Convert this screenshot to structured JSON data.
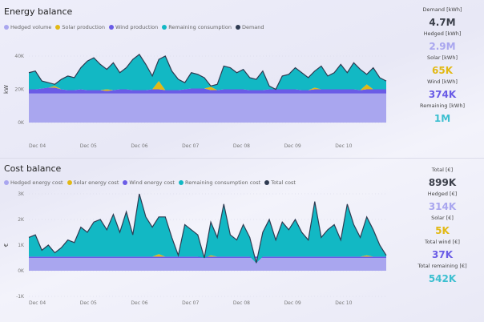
{
  "energy": {
    "title": "Energy balance",
    "legend": [
      "Hedged volume",
      "Solar production",
      "Wind production",
      "Remaining consumption",
      "Demand"
    ]
  },
  "cost": {
    "title": "Cost balance",
    "legend": [
      "Hedged energy cost",
      "Solar energy cost",
      "Wind energy cost",
      "Remaining consumption cost",
      "Total cost"
    ]
  },
  "colors": {
    "hedged": "#a9a6ef",
    "solar": "#e2b916",
    "wind": "#6a5ce6",
    "remaining": "#12b8c4",
    "demand": "#2f3b52"
  },
  "kpi_energy": [
    {
      "label": "Demand [kWh]",
      "value": "4.7M",
      "color": "#3b3f4a"
    },
    {
      "label": "Hedged [kWh]",
      "value": "2.9M",
      "color": "#a9a6ef"
    },
    {
      "label": "Solar [kWh]",
      "value": "65K",
      "color": "#e2b916"
    },
    {
      "label": "Wind [kWh]",
      "value": "374K",
      "color": "#6a5ce6"
    },
    {
      "label": "Remaining [kWh]",
      "value": "1M",
      "color": "#3cbfd0"
    }
  ],
  "kpi_cost": [
    {
      "label": "Total [€]",
      "value": "899K",
      "color": "#3b3f4a"
    },
    {
      "label": "Hedged [€]",
      "value": "314K",
      "color": "#a9a6ef"
    },
    {
      "label": "Solar [€]",
      "value": "5K",
      "color": "#e2b916"
    },
    {
      "label": "Total wind [€]",
      "value": "37K",
      "color": "#6a5ce6"
    },
    {
      "label": "Total remaining [€]",
      "value": "542K",
      "color": "#3cbfd0"
    }
  ],
  "chart_data": [
    {
      "type": "area",
      "title": "Energy balance",
      "ylabel": "kW",
      "ylim": [
        0,
        40
      ],
      "yticks": [
        "0K",
        "20K",
        "40K"
      ],
      "xticks": [
        "Dec 04",
        "Dec 05",
        "Dec 06",
        "Dec 07",
        "Dec 08",
        "Dec 09",
        "Dec 10"
      ],
      "step_hours": 3,
      "series": [
        {
          "name": "Hedged volume",
          "values_constant": 17.5
        },
        {
          "name": "Wind production",
          "values": [
            2.5,
            2.5,
            3,
            3.5,
            3.5,
            2.5,
            2,
            2,
            2.5,
            2,
            2,
            2,
            1.5,
            2,
            2.5,
            2.5,
            2,
            2,
            2,
            2.5,
            2.5,
            2,
            2,
            2,
            2.5,
            3,
            3,
            3,
            2,
            2,
            2.5,
            2.5,
            2.5,
            2.5,
            2,
            2,
            2,
            2.5,
            2.5,
            2.5,
            2.5,
            2.5,
            2,
            2,
            2.5,
            2.5,
            2.5,
            2.5,
            2.5,
            2.5,
            2.5,
            2,
            2.5,
            2.5,
            2.5,
            2.5
          ]
        },
        {
          "name": "Solar production",
          "values": [
            0,
            0,
            0,
            0,
            1,
            0,
            0,
            0,
            0,
            0,
            0,
            0,
            1,
            0,
            0,
            0,
            0,
            0,
            0,
            0,
            5,
            0,
            0,
            0,
            0,
            0,
            0,
            0,
            2,
            0,
            0,
            0,
            0,
            0,
            0,
            0,
            0,
            0,
            0,
            0,
            0,
            0,
            0,
            0,
            1,
            0,
            0,
            0,
            0,
            0,
            0,
            0,
            3,
            0,
            0,
            0
          ]
        },
        {
          "name": "Demand",
          "values": [
            30,
            31,
            25,
            24,
            23,
            26,
            28,
            27,
            33,
            37,
            39,
            35,
            32,
            36,
            30,
            33,
            38,
            41,
            35,
            28,
            38,
            40,
            31,
            26,
            24,
            30,
            29,
            27,
            22,
            23,
            34,
            33,
            30,
            32,
            27,
            26,
            31,
            22,
            20,
            28,
            29,
            33,
            30,
            27,
            31,
            34,
            28,
            30,
            35,
            30,
            36,
            32,
            29,
            33,
            27,
            25
          ]
        }
      ]
    },
    {
      "type": "area",
      "title": "Cost balance",
      "ylabel": "€",
      "ylim": [
        -1,
        3
      ],
      "yticks": [
        "-1K",
        "0K",
        "1K",
        "2K",
        "3K"
      ],
      "xticks": [
        "Dec 04",
        "Dec 05",
        "Dec 06",
        "Dec 07",
        "Dec 08",
        "Dec 09",
        "Dec 10"
      ],
      "step_hours": 3,
      "series": [
        {
          "name": "Hedged energy cost",
          "values_constant": 0.5
        },
        {
          "name": "Wind energy cost",
          "values_constant": 0.05
        },
        {
          "name": "Solar energy cost",
          "values": [
            0,
            0,
            0,
            0,
            0,
            0,
            0,
            0,
            0,
            0,
            0,
            0,
            0,
            0,
            0,
            0,
            0,
            0,
            0,
            0,
            0.1,
            0,
            0,
            0,
            0,
            0,
            0,
            0,
            0.05,
            0,
            0,
            0,
            0,
            0,
            0,
            0,
            0,
            0,
            0,
            0,
            0,
            0,
            0,
            0,
            0,
            0,
            0,
            0,
            0,
            0,
            0,
            0,
            0.05,
            0,
            0,
            0
          ]
        },
        {
          "name": "Total cost",
          "values": [
            1.3,
            1.4,
            0.8,
            1.0,
            0.7,
            0.9,
            1.2,
            1.1,
            1.7,
            1.5,
            1.9,
            2.0,
            1.6,
            2.2,
            1.5,
            2.3,
            1.4,
            3.0,
            2.1,
            1.7,
            2.1,
            2.1,
            1.3,
            0.6,
            1.8,
            1.6,
            1.4,
            0.5,
            1.9,
            1.3,
            2.6,
            1.4,
            1.2,
            1.8,
            1.3,
            0.3,
            1.5,
            2.0,
            1.2,
            1.9,
            1.6,
            2.0,
            1.5,
            1.2,
            2.7,
            1.3,
            1.6,
            1.8,
            1.2,
            2.6,
            1.8,
            1.3,
            2.1,
            1.6,
            1.0,
            0.6
          ]
        }
      ]
    }
  ]
}
